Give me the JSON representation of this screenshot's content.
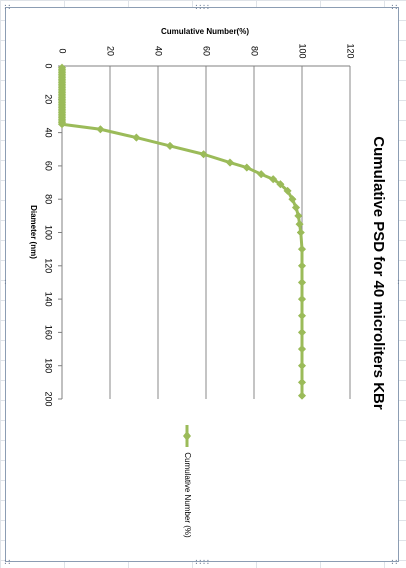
{
  "chart_data": {
    "type": "line",
    "title": "Cumulative PSD for 40 microliters KBr",
    "xlabel": "Diameter (nm)",
    "ylabel": "Cumulative Number(%)",
    "xlim": [
      0,
      200
    ],
    "ylim": [
      0,
      120
    ],
    "x_ticks": [
      "0",
      "20",
      "40",
      "60",
      "80",
      "100",
      "120",
      "140",
      "160",
      "180",
      "200"
    ],
    "y_ticks": [
      "0",
      "20",
      "40",
      "60",
      "80",
      "100",
      "120"
    ],
    "grid": "major gridlines on value axis",
    "orientation": "rotated 90° clockwise",
    "legend_position": "bottom",
    "series": [
      {
        "name": "Cumulative Number (%)",
        "color": "#9bbb59",
        "marker": "diamond",
        "x": [
          1,
          2,
          3,
          4,
          5,
          6,
          7,
          8,
          9,
          10,
          11,
          12,
          13,
          14,
          15,
          16,
          17,
          18,
          19,
          20,
          21,
          22,
          23,
          24,
          25,
          26,
          27,
          28,
          29,
          30,
          31,
          32,
          33,
          34,
          35,
          38,
          43,
          48,
          53,
          58,
          61,
          65,
          68,
          71,
          75,
          80,
          85,
          90,
          95,
          100,
          110,
          120,
          130,
          140,
          150,
          160,
          170,
          180,
          190,
          198
        ],
        "y": [
          0,
          0,
          0,
          0,
          0,
          0,
          0,
          0,
          0,
          0,
          0,
          0,
          0,
          0,
          0,
          0,
          0,
          0,
          0,
          0,
          0,
          0,
          0,
          0,
          0,
          0,
          0,
          0,
          0,
          0,
          0,
          0,
          0,
          0,
          0,
          16,
          31,
          45,
          59,
          70,
          77,
          83,
          88,
          91,
          94,
          96,
          97.5,
          98.5,
          99,
          99.5,
          100,
          100,
          100,
          100,
          100,
          100,
          100,
          100,
          100,
          100
        ]
      }
    ]
  }
}
